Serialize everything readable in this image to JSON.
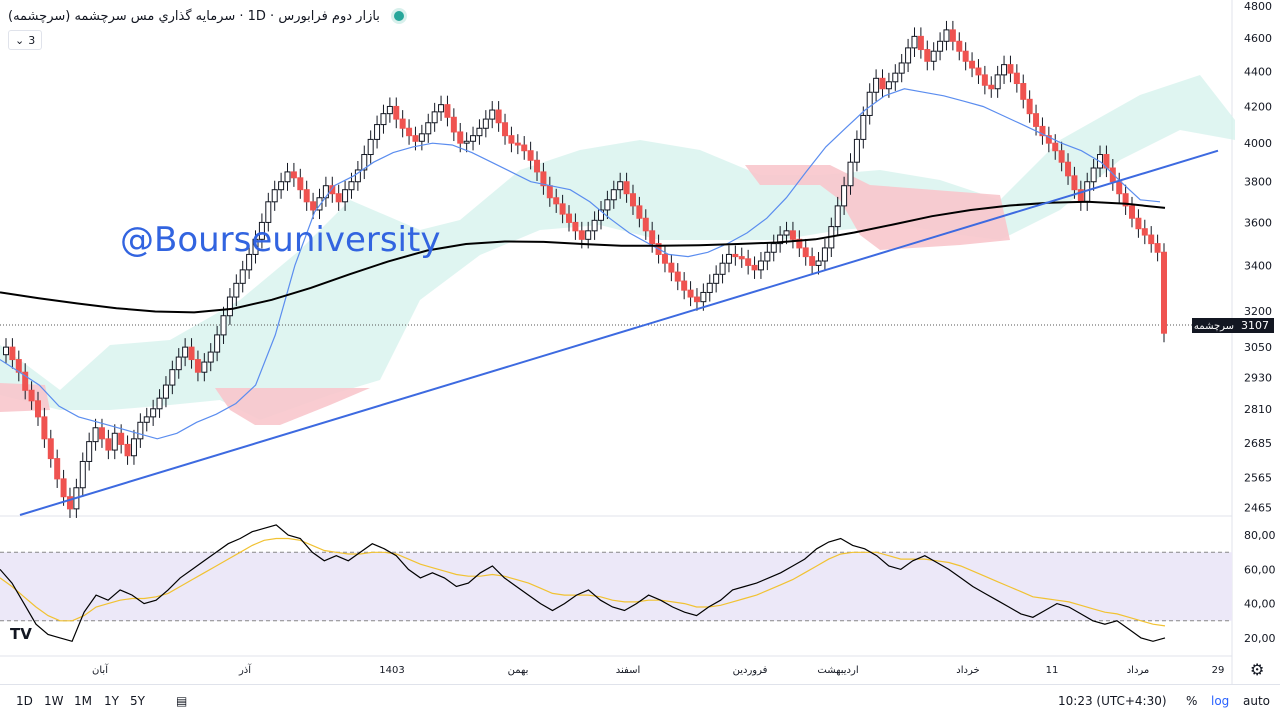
{
  "header": {
    "title": "بازار دوم فرابورس · 1D · سرمایه گذاري مس سرچشمه (سرچشمه)",
    "legend_count": "3",
    "status_color": "#26a69a"
  },
  "watermark": "@Bourseuniversity",
  "price_label": {
    "name": "سرچشمه",
    "value": "3107"
  },
  "price_axis_ticks": [
    "4800",
    "4600",
    "4400",
    "4200",
    "4000",
    "3800",
    "3600",
    "3400",
    "3200",
    "3050",
    "2930",
    "2810",
    "2685",
    "2565",
    "2465"
  ],
  "rsi_axis_ticks": [
    "80,00",
    "60,00",
    "40,00",
    "20,00"
  ],
  "time_axis_labels": [
    "آبان",
    "آذر",
    "1403",
    "بهمن",
    "اسفند",
    "فروردین",
    "اردیبهشت",
    "خرداد",
    "11",
    "مرداد",
    "29"
  ],
  "bottom_toolbar": {
    "ranges": [
      "1D",
      "1W",
      "1M",
      "1Y",
      "5Y"
    ],
    "time": "10:23 (UTC+4:30)",
    "percent": "%",
    "log": "log",
    "auto": "auto"
  },
  "colors": {
    "up": "#ffffff",
    "down": "#ef5350",
    "ma": "#000000",
    "kijun": "#5b8def",
    "trendline": "#3d6ae0",
    "cloud_green": "#d4f1ec",
    "cloud_red": "#f8c7cc",
    "rsi": "#000000",
    "rsi_signal": "#f1c232",
    "rsi_band": "#ece8f8"
  },
  "chart_data": [
    {
      "type": "candlestick",
      "title": "سرمایه گذاري مس سرچشمه (سرچشمه)",
      "timeframe": "1D",
      "scale": "log",
      "ylim": [
        2440,
        4800
      ],
      "last_price": 3107,
      "series": [
        {
          "name": "price",
          "values": [
            3050,
            3000,
            2950,
            2880,
            2840,
            2780,
            2700,
            2630,
            2560,
            2500,
            2460,
            2530,
            2620,
            2690,
            2740,
            2700,
            2660,
            2720,
            2680,
            2640,
            2700,
            2760,
            2780,
            2810,
            2850,
            2900,
            2960,
            3010,
            3050,
            3000,
            2950,
            2990,
            3030,
            3100,
            3180,
            3260,
            3320,
            3380,
            3450,
            3520,
            3600,
            3700,
            3760,
            3800,
            3850,
            3820,
            3760,
            3700,
            3660,
            3720,
            3780,
            3740,
            3700,
            3760,
            3800,
            3860,
            3940,
            4020,
            4100,
            4160,
            4200,
            4130,
            4080,
            4040,
            4010,
            4050,
            4110,
            4170,
            4210,
            4140,
            4060,
            4000,
            4010,
            4040,
            4080,
            4130,
            4180,
            4110,
            4040,
            4000,
            3990,
            3960,
            3910,
            3850,
            3780,
            3720,
            3690,
            3640,
            3600,
            3560,
            3520,
            3560,
            3610,
            3660,
            3710,
            3760,
            3800,
            3740,
            3680,
            3620,
            3560,
            3500,
            3450,
            3410,
            3370,
            3330,
            3290,
            3260,
            3240,
            3280,
            3320,
            3360,
            3410,
            3450,
            3440,
            3430,
            3400,
            3380,
            3420,
            3460,
            3500,
            3540,
            3560,
            3520,
            3480,
            3440,
            3400,
            3420,
            3480,
            3580,
            3680,
            3780,
            3900,
            4020,
            4150,
            4280,
            4360,
            4300,
            4340,
            4390,
            4450,
            4540,
            4610,
            4530,
            4460,
            4520,
            4580,
            4650,
            4580,
            4520,
            4460,
            4420,
            4380,
            4320,
            4300,
            4380,
            4440,
            4390,
            4330,
            4240,
            4160,
            4090,
            4040,
            4000,
            3960,
            3900,
            3830,
            3760,
            3700,
            3800,
            3870,
            3940,
            3870,
            3800,
            3740,
            3680,
            3620,
            3570,
            3540,
            3500,
            3460,
            3107
          ]
        },
        {
          "name": "MA",
          "values": [
            3280,
            3255,
            3232,
            3212,
            3198,
            3194,
            3210,
            3248,
            3300,
            3360,
            3418,
            3468,
            3498,
            3510,
            3508,
            3498,
            3490,
            3490,
            3492,
            3498,
            3505,
            3520,
            3552,
            3590,
            3630,
            3660,
            3682,
            3695,
            3700,
            3690,
            3670
          ]
        },
        {
          "name": "kijun",
          "values": [
            3000,
            2950,
            2900,
            2820,
            2780,
            2760,
            2740,
            2720,
            2700,
            2720,
            2760,
            2790,
            2830,
            2900,
            3100,
            3400,
            3650,
            3780,
            3830,
            3900,
            3950,
            3980,
            4000,
            3990,
            3950,
            3900,
            3850,
            3800,
            3780,
            3760,
            3700,
            3620,
            3550,
            3500,
            3450,
            3440,
            3460,
            3500,
            3550,
            3620,
            3720,
            3850,
            3980,
            4080,
            4180,
            4260,
            4300,
            4280,
            4260,
            4230,
            4200,
            4150,
            4100,
            4050,
            4000,
            3960,
            3900,
            3800,
            3710,
            3700
          ]
        },
        {
          "name": "trendline",
          "values": [
            2440,
            3960
          ]
        }
      ]
    },
    {
      "type": "line",
      "title": "RSI",
      "ylim": [
        10,
        90
      ],
      "bands": [
        30,
        70
      ],
      "series": [
        {
          "name": "rsi",
          "values": [
            60,
            52,
            40,
            28,
            22,
            20,
            18,
            35,
            45,
            42,
            48,
            45,
            40,
            42,
            48,
            55,
            60,
            65,
            70,
            75,
            78,
            82,
            84,
            86,
            80,
            78,
            70,
            65,
            68,
            65,
            70,
            75,
            72,
            68,
            60,
            55,
            58,
            55,
            50,
            52,
            58,
            62,
            55,
            50,
            45,
            40,
            36,
            40,
            45,
            48,
            42,
            38,
            36,
            40,
            45,
            42,
            38,
            35,
            33,
            38,
            42,
            48,
            50,
            52,
            55,
            58,
            62,
            66,
            72,
            76,
            78,
            74,
            72,
            68,
            62,
            60,
            65,
            68,
            64,
            60,
            55,
            50,
            46,
            42,
            38,
            34,
            32,
            36,
            40,
            38,
            34,
            30,
            28,
            30,
            25,
            20,
            18,
            20
          ]
        },
        {
          "name": "signal",
          "values": [
            55,
            50,
            44,
            38,
            33,
            30,
            30,
            33,
            38,
            40,
            42,
            43,
            43,
            44,
            46,
            50,
            54,
            58,
            62,
            66,
            70,
            74,
            77,
            78,
            78,
            77,
            74,
            71,
            70,
            69,
            69,
            70,
            70,
            69,
            66,
            63,
            61,
            59,
            57,
            56,
            56,
            57,
            56,
            54,
            52,
            49,
            46,
            45,
            45,
            45,
            44,
            42,
            41,
            41,
            42,
            42,
            41,
            40,
            38,
            38,
            39,
            41,
            43,
            45,
            48,
            51,
            54,
            58,
            62,
            66,
            69,
            70,
            70,
            70,
            68,
            66,
            66,
            66,
            65,
            64,
            62,
            59,
            56,
            53,
            50,
            47,
            44,
            43,
            42,
            41,
            39,
            37,
            35,
            34,
            32,
            30,
            28,
            27
          ]
        }
      ]
    }
  ]
}
